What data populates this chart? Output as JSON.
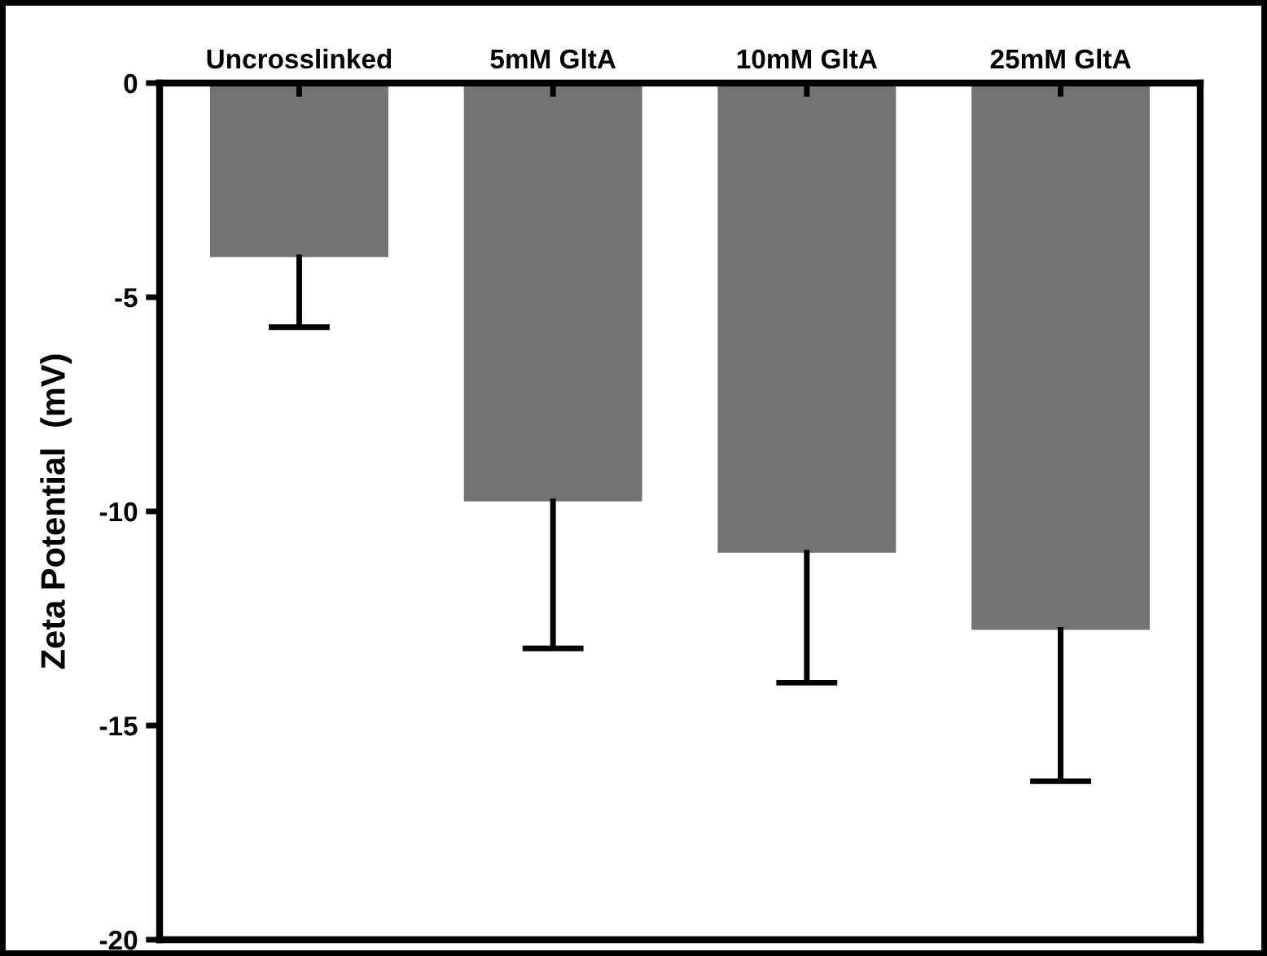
{
  "chart_data": {
    "type": "bar",
    "ylabel": "Zeta Potential  (mV)",
    "categories": [
      "Uncrosslinked",
      "5mM GltA",
      "10mM GltA",
      "25mM GltA"
    ],
    "values": [
      -4.0,
      -9.7,
      -10.9,
      -12.7
    ],
    "errors": [
      [
        -5.7,
        -4.0
      ],
      [
        -13.2,
        -9.7
      ],
      [
        -14.0,
        -10.9
      ],
      [
        -16.3,
        -12.7
      ]
    ],
    "color": "#737373",
    "ylim": [
      -20,
      0
    ],
    "yticks": [
      {
        "value": -20,
        "label": "-20"
      },
      {
        "value": -15,
        "label": "-15"
      },
      {
        "value": -10,
        "label": "-10"
      },
      {
        "value": -5,
        "label": "-5"
      },
      0
    ],
    "grid": false
  }
}
